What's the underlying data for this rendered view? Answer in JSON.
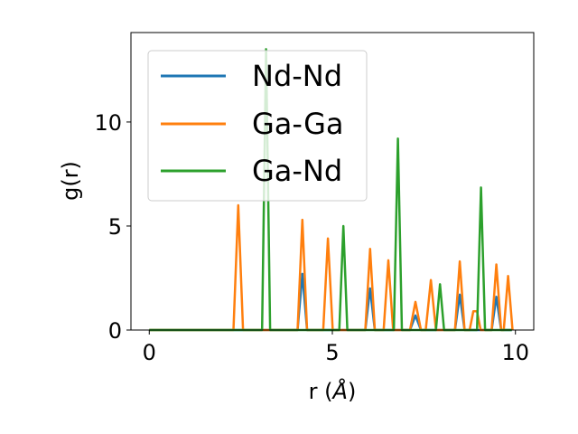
{
  "chart_data": {
    "type": "line",
    "xlabel": "r (",
    "xlabel_unit": "Å",
    "xlabel_close": ")",
    "ylabel": "g(r)",
    "xlim": [
      -0.5,
      10.5
    ],
    "ylim": [
      0,
      14.3
    ],
    "xticks": [
      0,
      5,
      10
    ],
    "xtick_labels": [
      "0",
      "5",
      "10"
    ],
    "yticks": [
      0,
      5,
      10
    ],
    "ytick_labels": [
      "0",
      "5",
      "10"
    ],
    "grid": false,
    "legend_position": "top-left",
    "series": [
      {
        "name": "Nd-Nd",
        "color": "#1f77b4",
        "x": [
          0,
          4.05,
          4.18,
          4.31,
          5.9,
          6.03,
          6.16,
          7.12,
          7.27,
          7.42,
          8.35,
          8.48,
          8.61,
          9.35,
          9.48,
          9.61,
          9.9
        ],
        "y": [
          0,
          0,
          2.7,
          0,
          0,
          2.0,
          0,
          0,
          0.7,
          0,
          0,
          1.7,
          0,
          0,
          1.6,
          0,
          0
        ]
      },
      {
        "name": "Ga-Ga",
        "color": "#ff7f0e",
        "x": [
          0,
          2.3,
          2.43,
          2.56,
          4.05,
          4.18,
          4.31,
          4.75,
          4.88,
          5.01,
          5.9,
          6.03,
          6.16,
          6.4,
          6.53,
          6.66,
          7.12,
          7.27,
          7.42,
          7.55,
          7.69,
          7.83,
          8.35,
          8.48,
          8.61,
          8.75,
          8.85,
          8.95,
          9.05,
          9.35,
          9.48,
          9.61,
          9.68,
          9.8,
          9.92
        ],
        "y": [
          0,
          0,
          6.0,
          0,
          0,
          5.3,
          0,
          0,
          4.4,
          0,
          0,
          3.9,
          0,
          0,
          3.35,
          0,
          0,
          1.35,
          0,
          0,
          2.4,
          0,
          0,
          3.3,
          0,
          0,
          0.9,
          0.9,
          0,
          0,
          3.15,
          0,
          0,
          2.6,
          0
        ]
      },
      {
        "name": "Ga-Nd",
        "color": "#2ca02c",
        "x": [
          0,
          3.08,
          3.19,
          3.3,
          5.19,
          5.3,
          5.41,
          6.68,
          6.79,
          6.9,
          7.83,
          7.94,
          8.05,
          8.95,
          9.06,
          9.17,
          9.9
        ],
        "y": [
          0,
          0,
          13.5,
          0,
          0,
          5.0,
          0,
          0,
          9.2,
          0,
          0,
          2.2,
          0,
          0,
          6.85,
          0,
          0
        ]
      }
    ]
  }
}
